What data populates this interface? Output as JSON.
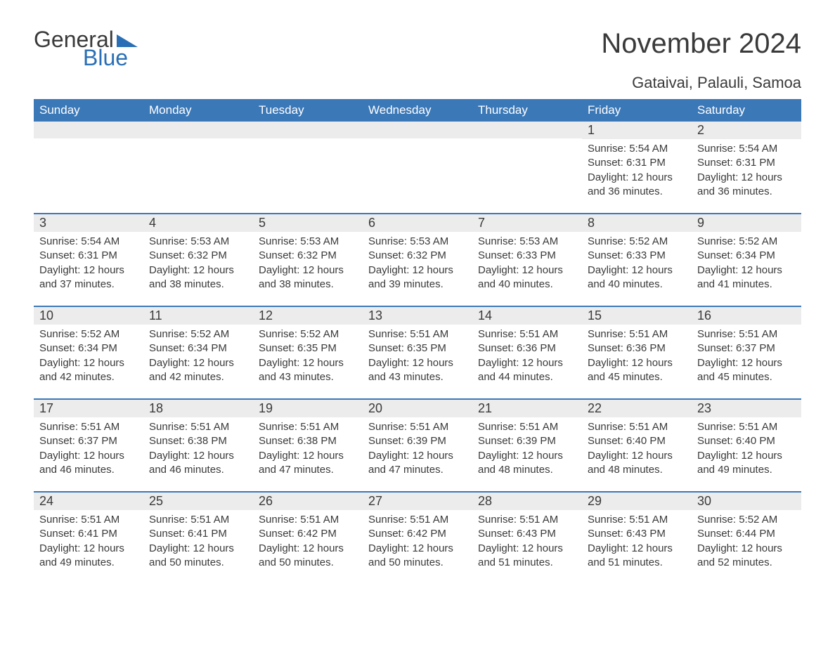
{
  "logo": {
    "text1": "General",
    "text2": "Blue",
    "tri_color": "#2a6fb5"
  },
  "title": "November 2024",
  "location": "Gataivai, Palauli, Samoa",
  "colors": {
    "header_bg": "#3b78b8",
    "header_text": "#ffffff",
    "daynum_bg": "#ececec",
    "week_border": "#3b78b8",
    "body_text": "#3a3a3a",
    "page_bg": "#ffffff"
  },
  "fonts": {
    "title_size": 40,
    "location_size": 22,
    "dow_size": 17,
    "daynum_size": 18,
    "body_size": 15
  },
  "dow": [
    "Sunday",
    "Monday",
    "Tuesday",
    "Wednesday",
    "Thursday",
    "Friday",
    "Saturday"
  ],
  "leading_blanks": 5,
  "days": [
    {
      "n": 1,
      "sunrise": "5:54 AM",
      "sunset": "6:31 PM",
      "daylight": "12 hours and 36 minutes."
    },
    {
      "n": 2,
      "sunrise": "5:54 AM",
      "sunset": "6:31 PM",
      "daylight": "12 hours and 36 minutes."
    },
    {
      "n": 3,
      "sunrise": "5:54 AM",
      "sunset": "6:31 PM",
      "daylight": "12 hours and 37 minutes."
    },
    {
      "n": 4,
      "sunrise": "5:53 AM",
      "sunset": "6:32 PM",
      "daylight": "12 hours and 38 minutes."
    },
    {
      "n": 5,
      "sunrise": "5:53 AM",
      "sunset": "6:32 PM",
      "daylight": "12 hours and 38 minutes."
    },
    {
      "n": 6,
      "sunrise": "5:53 AM",
      "sunset": "6:32 PM",
      "daylight": "12 hours and 39 minutes."
    },
    {
      "n": 7,
      "sunrise": "5:53 AM",
      "sunset": "6:33 PM",
      "daylight": "12 hours and 40 minutes."
    },
    {
      "n": 8,
      "sunrise": "5:52 AM",
      "sunset": "6:33 PM",
      "daylight": "12 hours and 40 minutes."
    },
    {
      "n": 9,
      "sunrise": "5:52 AM",
      "sunset": "6:34 PM",
      "daylight": "12 hours and 41 minutes."
    },
    {
      "n": 10,
      "sunrise": "5:52 AM",
      "sunset": "6:34 PM",
      "daylight": "12 hours and 42 minutes."
    },
    {
      "n": 11,
      "sunrise": "5:52 AM",
      "sunset": "6:34 PM",
      "daylight": "12 hours and 42 minutes."
    },
    {
      "n": 12,
      "sunrise": "5:52 AM",
      "sunset": "6:35 PM",
      "daylight": "12 hours and 43 minutes."
    },
    {
      "n": 13,
      "sunrise": "5:51 AM",
      "sunset": "6:35 PM",
      "daylight": "12 hours and 43 minutes."
    },
    {
      "n": 14,
      "sunrise": "5:51 AM",
      "sunset": "6:36 PM",
      "daylight": "12 hours and 44 minutes."
    },
    {
      "n": 15,
      "sunrise": "5:51 AM",
      "sunset": "6:36 PM",
      "daylight": "12 hours and 45 minutes."
    },
    {
      "n": 16,
      "sunrise": "5:51 AM",
      "sunset": "6:37 PM",
      "daylight": "12 hours and 45 minutes."
    },
    {
      "n": 17,
      "sunrise": "5:51 AM",
      "sunset": "6:37 PM",
      "daylight": "12 hours and 46 minutes."
    },
    {
      "n": 18,
      "sunrise": "5:51 AM",
      "sunset": "6:38 PM",
      "daylight": "12 hours and 46 minutes."
    },
    {
      "n": 19,
      "sunrise": "5:51 AM",
      "sunset": "6:38 PM",
      "daylight": "12 hours and 47 minutes."
    },
    {
      "n": 20,
      "sunrise": "5:51 AM",
      "sunset": "6:39 PM",
      "daylight": "12 hours and 47 minutes."
    },
    {
      "n": 21,
      "sunrise": "5:51 AM",
      "sunset": "6:39 PM",
      "daylight": "12 hours and 48 minutes."
    },
    {
      "n": 22,
      "sunrise": "5:51 AM",
      "sunset": "6:40 PM",
      "daylight": "12 hours and 48 minutes."
    },
    {
      "n": 23,
      "sunrise": "5:51 AM",
      "sunset": "6:40 PM",
      "daylight": "12 hours and 49 minutes."
    },
    {
      "n": 24,
      "sunrise": "5:51 AM",
      "sunset": "6:41 PM",
      "daylight": "12 hours and 49 minutes."
    },
    {
      "n": 25,
      "sunrise": "5:51 AM",
      "sunset": "6:41 PM",
      "daylight": "12 hours and 50 minutes."
    },
    {
      "n": 26,
      "sunrise": "5:51 AM",
      "sunset": "6:42 PM",
      "daylight": "12 hours and 50 minutes."
    },
    {
      "n": 27,
      "sunrise": "5:51 AM",
      "sunset": "6:42 PM",
      "daylight": "12 hours and 50 minutes."
    },
    {
      "n": 28,
      "sunrise": "5:51 AM",
      "sunset": "6:43 PM",
      "daylight": "12 hours and 51 minutes."
    },
    {
      "n": 29,
      "sunrise": "5:51 AM",
      "sunset": "6:43 PM",
      "daylight": "12 hours and 51 minutes."
    },
    {
      "n": 30,
      "sunrise": "5:52 AM",
      "sunset": "6:44 PM",
      "daylight": "12 hours and 52 minutes."
    }
  ],
  "labels": {
    "sunrise": "Sunrise:",
    "sunset": "Sunset:",
    "daylight": "Daylight:"
  }
}
